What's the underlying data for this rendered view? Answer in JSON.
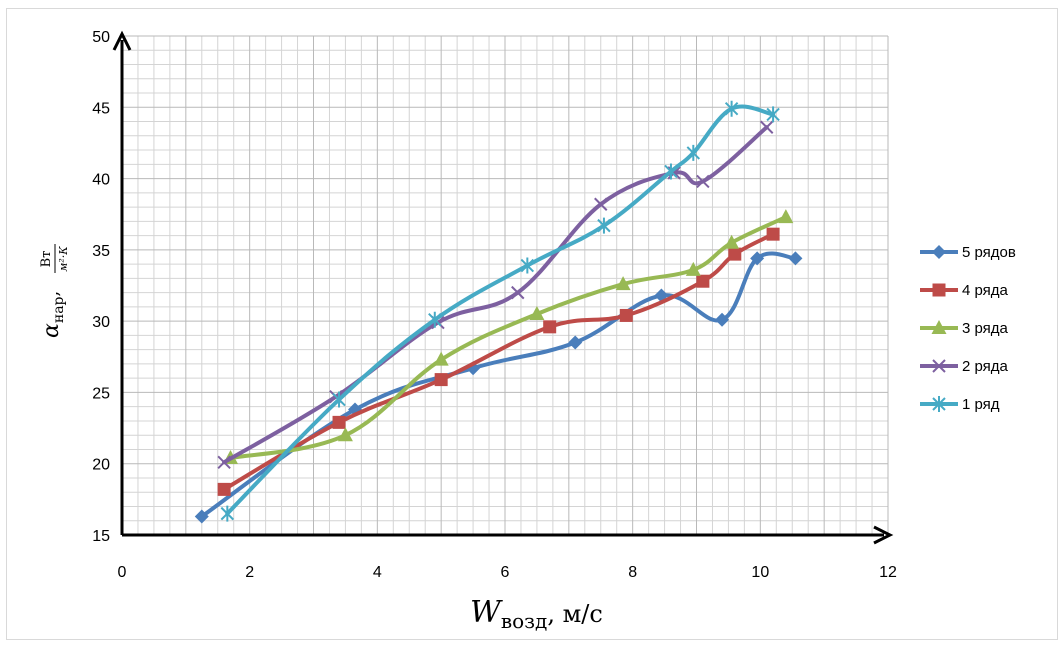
{
  "chart_data": {
    "type": "line",
    "xlabel_main": "W",
    "xlabel_sub": "возд",
    "xlabel_unit": ", м/с",
    "ylabel_main": "α",
    "ylabel_sub": "нар",
    "ylabel_num": "Вт",
    "ylabel_den": "м²·К",
    "xlim": [
      0,
      12
    ],
    "ylim": [
      15,
      50
    ],
    "xticks": [
      0,
      2,
      4,
      6,
      8,
      10,
      12
    ],
    "yticks": [
      15,
      20,
      25,
      30,
      35,
      40,
      45,
      50
    ],
    "grid": true,
    "legend_position": "right",
    "series": [
      {
        "name": "5 рядов",
        "color": "#4a7ebb",
        "marker": "diamond",
        "points": [
          [
            1.25,
            16.3
          ],
          [
            3.65,
            23.8
          ],
          [
            5.5,
            26.7
          ],
          [
            7.1,
            28.5
          ],
          [
            8.45,
            31.8
          ],
          [
            9.4,
            30.1
          ],
          [
            9.95,
            34.4
          ],
          [
            10.55,
            34.4
          ]
        ]
      },
      {
        "name": "4 ряда",
        "color": "#be4b48",
        "marker": "square",
        "points": [
          [
            1.6,
            18.2
          ],
          [
            3.4,
            22.9
          ],
          [
            5.0,
            25.9
          ],
          [
            6.7,
            29.6
          ],
          [
            7.9,
            30.4
          ],
          [
            9.1,
            32.8
          ],
          [
            9.6,
            34.7
          ],
          [
            10.2,
            36.1
          ]
        ]
      },
      {
        "name": "3 ряда",
        "color": "#98b954",
        "marker": "triangle",
        "points": [
          [
            1.7,
            20.4
          ],
          [
            3.5,
            22.0
          ],
          [
            5.0,
            27.3
          ],
          [
            6.5,
            30.5
          ],
          [
            7.85,
            32.6
          ],
          [
            8.95,
            33.6
          ],
          [
            9.55,
            35.5
          ],
          [
            10.4,
            37.3
          ]
        ]
      },
      {
        "name": "2 ряда",
        "color": "#7d60a0",
        "marker": "x",
        "points": [
          [
            1.6,
            20.1
          ],
          [
            3.35,
            24.7
          ],
          [
            4.95,
            29.9
          ],
          [
            6.2,
            32.0
          ],
          [
            7.5,
            38.2
          ],
          [
            8.65,
            40.4
          ],
          [
            9.1,
            39.8
          ],
          [
            10.1,
            43.6
          ]
        ]
      },
      {
        "name": "1 ряд",
        "color": "#46aac5",
        "marker": "star",
        "points": [
          [
            1.65,
            16.5
          ],
          [
            3.4,
            24.5
          ],
          [
            4.9,
            30.1
          ],
          [
            6.35,
            33.9
          ],
          [
            7.55,
            36.7
          ],
          [
            8.6,
            40.5
          ],
          [
            8.95,
            41.8
          ],
          [
            9.55,
            44.9
          ],
          [
            10.2,
            44.5
          ]
        ]
      }
    ]
  }
}
